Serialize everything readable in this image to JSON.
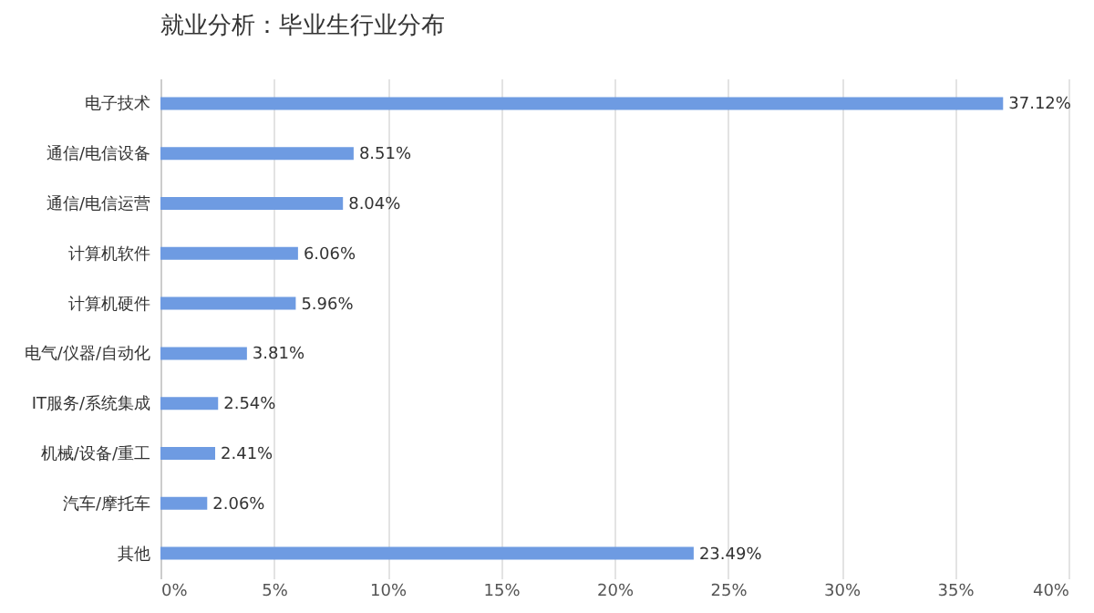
{
  "chart_data": {
    "type": "bar",
    "orientation": "horizontal",
    "title": "就业分析：毕业生行业分布",
    "categories": [
      "电子技术",
      "通信/电信设备",
      "通信/电信运营",
      "计算机软件",
      "计算机硬件",
      "电气/仪器/自动化",
      "IT服务/系统集成",
      "机械/设备/重工",
      "汽车/摩托车",
      "其他"
    ],
    "values": [
      37.12,
      8.51,
      8.04,
      6.06,
      5.96,
      3.81,
      2.54,
      2.41,
      2.06,
      23.49
    ],
    "value_labels": [
      "37.12%",
      "8.51%",
      "8.04%",
      "6.06%",
      "5.96%",
      "3.81%",
      "2.54%",
      "2.41%",
      "2.06%",
      "23.49%"
    ],
    "color": "#6e9be2",
    "xlim": [
      0,
      40
    ],
    "xticks": [
      {
        "value": 0,
        "label": "0%"
      },
      {
        "value": 5,
        "label": "5%"
      },
      {
        "value": 10,
        "label": "10%"
      },
      {
        "value": 15,
        "label": "15%"
      },
      {
        "value": 20,
        "label": "20%"
      },
      {
        "value": 25,
        "label": "25%"
      },
      {
        "value": 30,
        "label": "30%"
      },
      {
        "value": 35,
        "label": "35%"
      },
      {
        "value": 40,
        "label": "40%"
      }
    ],
    "grid": "x"
  }
}
